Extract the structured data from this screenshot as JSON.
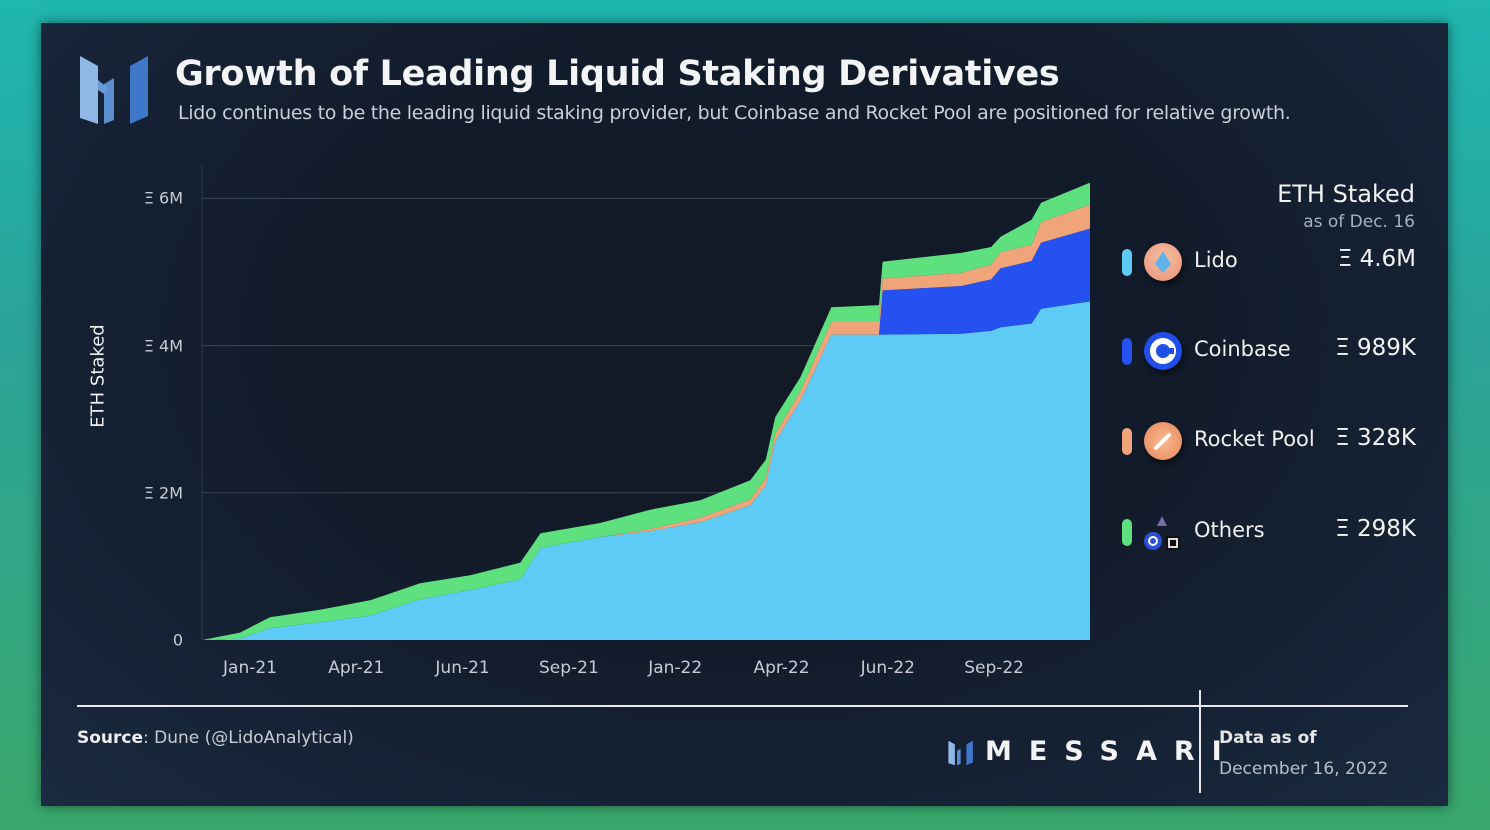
{
  "header": {
    "title": "Growth of Leading Liquid Staking Derivatives",
    "subtitle": "Lido continues to be the leading liquid staking provider, but Coinbase and Rocket Pool are positioned for relative growth."
  },
  "legend": {
    "title": "ETH Staked",
    "subtitle": "as of Dec. 16",
    "items": [
      {
        "name": "Lido",
        "value": "Ξ 4.6M",
        "color": "#5ecbf7",
        "icon": "lido-logo-icon"
      },
      {
        "name": "Coinbase",
        "value": "Ξ 989K",
        "color": "#2451f0",
        "icon": "coinbase-logo-icon"
      },
      {
        "name": "Rocket Pool",
        "value": "Ξ 328K",
        "color": "#f0a47a",
        "icon": "rocket-pool-logo-icon"
      },
      {
        "name": "Others",
        "value": "Ξ 298K",
        "color": "#5ee07e",
        "icon": "others-logos-icon"
      }
    ]
  },
  "footer": {
    "source_label": "Source",
    "source_text": ": Dune (@LidoAnalytical)",
    "brand": "MESSARI",
    "data_as_of_label": "Data as of",
    "data_as_of_date": "December 16, 2022"
  },
  "chart_data": {
    "type": "area",
    "stacked": true,
    "ylabel": "ETH Staked",
    "ylim": [
      0,
      6200000
    ],
    "yticks": [
      0,
      2000000,
      4000000,
      6000000
    ],
    "ytick_labels": [
      "0",
      "Ξ 2M",
      "Ξ 4M",
      "Ξ 6M"
    ],
    "xtick_labels": [
      "Jan-21",
      "Apr-21",
      "Jun-21",
      "Sep-21",
      "Jan-22",
      "Apr-22",
      "Jun-22",
      "Sep-22"
    ],
    "grid": "horizontal",
    "x": [
      "2020-12-01",
      "2021-01-02",
      "2021-01-27",
      "2021-03-10",
      "2021-04-21",
      "2021-06-02",
      "2021-07-14",
      "2021-08-25",
      "2021-09-11",
      "2021-10-31",
      "2021-12-12",
      "2022-01-23",
      "2022-03-06",
      "2022-03-19",
      "2022-03-27",
      "2022-04-17",
      "2022-05-13",
      "2022-06-22",
      "2022-06-25",
      "2022-08-30",
      "2022-09-24",
      "2022-10-02",
      "2022-10-28",
      "2022-11-05",
      "2022-12-16"
    ],
    "series": [
      {
        "name": "Lido",
        "color": "#5ecbf7",
        "values": [
          0,
          20000,
          160000,
          240000,
          330000,
          550000,
          680000,
          820000,
          1250000,
          1400000,
          1480000,
          1600000,
          1830000,
          2100000,
          2700000,
          3250000,
          4150000,
          4150000,
          4150000,
          4160000,
          4200000,
          4250000,
          4300000,
          4500000,
          4600000
        ]
      },
      {
        "name": "Coinbase",
        "color": "#2451f0",
        "values": [
          0,
          0,
          0,
          0,
          0,
          0,
          0,
          0,
          0,
          0,
          0,
          0,
          0,
          0,
          0,
          0,
          0,
          0,
          600000,
          650000,
          700000,
          800000,
          850000,
          900000,
          989000
        ]
      },
      {
        "name": "Rocket Pool",
        "color": "#f0a47a",
        "values": [
          0,
          0,
          0,
          0,
          0,
          0,
          0,
          0,
          0,
          0,
          30000,
          60000,
          80000,
          100000,
          100000,
          130000,
          170000,
          170000,
          160000,
          180000,
          200000,
          220000,
          220000,
          280000,
          328000
        ]
      },
      {
        "name": "Others",
        "color": "#5ee07e",
        "values": [
          0,
          80000,
          150000,
          170000,
          210000,
          220000,
          200000,
          230000,
          200000,
          190000,
          260000,
          240000,
          260000,
          250000,
          230000,
          190000,
          200000,
          230000,
          230000,
          270000,
          240000,
          210000,
          340000,
          260000,
          298000
        ]
      }
    ]
  }
}
